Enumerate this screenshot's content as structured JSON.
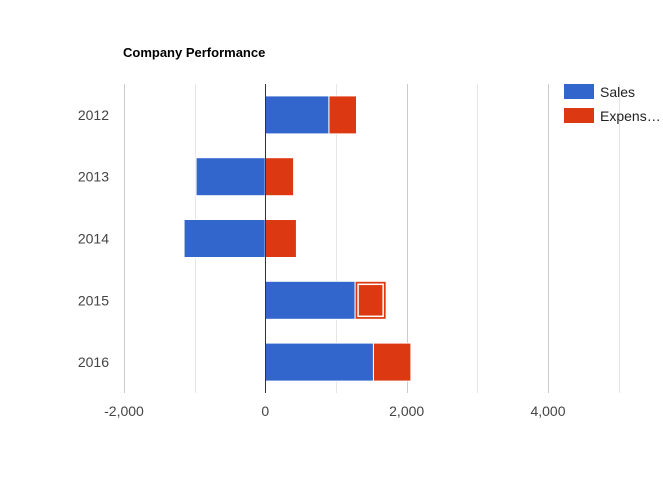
{
  "chart_data": {
    "type": "bar",
    "orientation": "horizontal",
    "stacked": true,
    "title": "Company Performance",
    "categories": [
      "2012",
      "2013",
      "2014",
      "2015",
      "2016"
    ],
    "series": [
      {
        "name": "Sales",
        "color": "#3366cc",
        "values": [
          900,
          -980,
          -1150,
          1270,
          1530
        ]
      },
      {
        "name": "Expens…",
        "color": "#dc3912",
        "values": [
          390,
          400,
          440,
          440,
          530
        ]
      }
    ],
    "highlighted": {
      "series": 1,
      "category": 3
    },
    "xlim": [
      -2000,
      5000
    ],
    "x_ticks": [
      -2000,
      0,
      2000,
      4000
    ],
    "x_tick_labels": [
      "-2,000",
      "0",
      "2,000",
      "4,000"
    ],
    "grid": true,
    "legend_position": "right"
  }
}
